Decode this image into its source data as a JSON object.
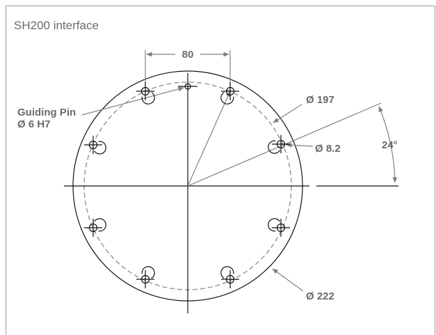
{
  "header": {
    "title": "SH200 interface"
  },
  "labels": {
    "spacing": "80",
    "pin_name": "Guiding Pin",
    "pin_size": "Ø 6 H7",
    "pitch_diameter": "Ø 197",
    "hole_diameter": "Ø 8.2",
    "angle": "24°",
    "outer_diameter": "Ø 222"
  }
}
